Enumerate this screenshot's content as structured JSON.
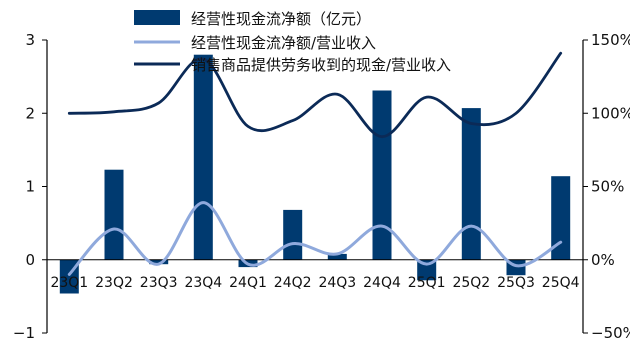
{
  "chart_data": {
    "type": "bar",
    "title": "",
    "xlabel": "",
    "ylabel": "",
    "categories": [
      "23Q1",
      "23Q2",
      "23Q3",
      "23Q4",
      "24Q1",
      "24Q2",
      "24Q3",
      "24Q4",
      "25Q1",
      "25Q2",
      "25Q3",
      "25Q4"
    ],
    "series": [
      {
        "name": "经营性现金流净额（亿元）",
        "type": "bar",
        "axis": "left",
        "color": "#003a70",
        "values": [
          -0.46,
          1.23,
          -0.06,
          2.8,
          -0.1,
          0.68,
          0.08,
          2.31,
          -0.28,
          2.07,
          -0.21,
          1.14
        ]
      },
      {
        "name": "经营性现金流净额/营业收入",
        "type": "line",
        "axis": "right",
        "color": "#8fa9dc",
        "values": [
          -10,
          21,
          -3,
          39,
          -3,
          11,
          4,
          23,
          -3,
          23,
          -4,
          12
        ]
      },
      {
        "name": "销售商品提供劳务收到的现金/营业收入",
        "type": "line",
        "axis": "right",
        "color": "#0b2a57",
        "values": [
          100,
          101,
          107,
          137,
          91,
          95,
          113,
          84,
          111,
          93,
          100,
          141
        ]
      }
    ],
    "y_left": {
      "range": [
        -1,
        3
      ],
      "ticks": [
        -1,
        0,
        1,
        2,
        3
      ],
      "tick_labels": [
        "−1",
        "0",
        "1",
        "2",
        "3"
      ]
    },
    "y_right": {
      "range": [
        -50,
        150
      ],
      "ticks": [
        -50,
        0,
        50,
        100,
        150
      ],
      "tick_labels": [
        "−50%",
        "0%",
        "50%",
        "100%",
        "150%"
      ]
    },
    "grid": false,
    "legend_position": "top"
  }
}
